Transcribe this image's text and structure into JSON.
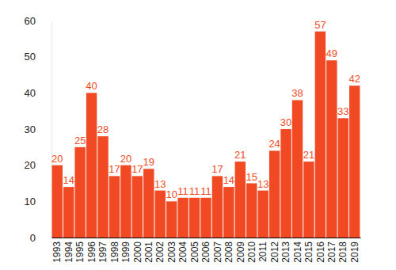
{
  "chart_data": {
    "type": "bar",
    "categories": [
      "1993",
      "1994",
      "1995",
      "1996",
      "1997",
      "1998",
      "1999",
      "2000",
      "2001",
      "2002",
      "2003",
      "2004",
      "2005",
      "2006",
      "2007",
      "2008",
      "2009",
      "2010",
      "2011",
      "2012",
      "2013",
      "2014",
      "2015",
      "2016",
      "2017",
      "2018",
      "2019"
    ],
    "values": [
      20,
      14,
      25,
      40,
      28,
      17,
      20,
      17,
      19,
      13,
      10,
      11,
      11,
      11,
      17,
      14,
      21,
      15,
      13,
      24,
      30,
      38,
      21,
      57,
      49,
      33,
      42
    ],
    "color": "#f04923",
    "ylim": [
      0,
      60
    ],
    "yticks": [
      0,
      10,
      20,
      30,
      40,
      50,
      60
    ],
    "grid": false,
    "data_labels": true
  }
}
